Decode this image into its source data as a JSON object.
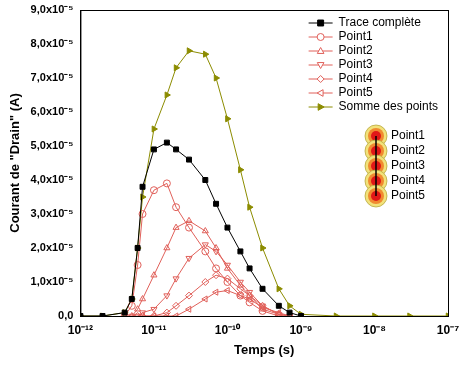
{
  "chart_data": {
    "type": "line",
    "x_label": "Temps (s)",
    "y_label": "Courant de \"Drain\" (A)",
    "log": "x",
    "grid": false,
    "legend": "top-right",
    "xlim": [
      1e-12,
      1e-07
    ],
    "xticks": [
      {
        "value": 1e-12,
        "label": "10⁻¹²"
      },
      {
        "value": 1e-11,
        "label": "10⁻¹¹"
      },
      {
        "value": 1e-10,
        "label": "10⁻¹⁰"
      },
      {
        "value": 1e-09,
        "label": "10⁻⁹"
      },
      {
        "value": 1e-08,
        "label": "10⁻⁸"
      },
      {
        "value": 1e-07,
        "label": "10⁻⁷"
      }
    ],
    "ylim": [
      0,
      9e-05
    ],
    "yticks": [
      {
        "value": 0,
        "label": "0,0"
      },
      {
        "value": 1e-05,
        "label": "1,0x10⁻⁵"
      },
      {
        "value": 2e-05,
        "label": "2,0x10⁻⁵"
      },
      {
        "value": 3e-05,
        "label": "3,0x10⁻⁵"
      },
      {
        "value": 4e-05,
        "label": "4,0x10⁻⁵"
      },
      {
        "value": 5e-05,
        "label": "5,0x10⁻⁵"
      },
      {
        "value": 6e-05,
        "label": "6,0x10⁻⁵"
      },
      {
        "value": 7e-05,
        "label": "7,0x10⁻⁵"
      },
      {
        "value": 8e-05,
        "label": "8,0x10⁻⁵"
      },
      {
        "value": 9e-05,
        "label": "9,0x10⁻⁵"
      }
    ],
    "x": [
      1e-12,
      2e-12,
      4e-12,
      5e-12,
      6e-12,
      7e-12,
      1e-11,
      1.5e-11,
      2e-11,
      3e-11,
      5e-11,
      7e-11,
      1e-10,
      1.5e-10,
      2e-10,
      3e-10,
      5e-10,
      7e-10,
      1e-09,
      3e-09,
      1e-08,
      3e-08,
      1e-07
    ],
    "series": [
      {
        "name": "Trace complète",
        "color": "#000000",
        "marker": "square",
        "values": [
          0,
          0,
          1e-06,
          5e-06,
          2e-05,
          3.8e-05,
          4.9e-05,
          5.1e-05,
          4.9e-05,
          4.6e-05,
          4e-05,
          3.3e-05,
          2.6e-05,
          1.9e-05,
          1.4e-05,
          8e-06,
          3e-06,
          1e-06,
          0,
          null,
          null,
          null,
          null
        ]
      },
      {
        "name": "Point1",
        "color": "#e0605a",
        "marker": "open-circle",
        "values": [
          null,
          null,
          0,
          3e-06,
          1.5e-05,
          3e-05,
          3.7e-05,
          3.9e-05,
          3.2e-05,
          2.6e-05,
          1.9e-05,
          1.4e-05,
          1e-05,
          6e-06,
          4e-06,
          1.5e-06,
          0,
          null,
          null,
          null,
          null,
          null,
          null
        ]
      },
      {
        "name": "Point2",
        "color": "#e0605a",
        "marker": "open-triangle-up",
        "values": [
          null,
          null,
          0,
          0,
          2e-06,
          5e-06,
          1.2e-05,
          2e-05,
          2.6e-05,
          2.8e-05,
          2.5e-05,
          2e-05,
          1.4e-05,
          9e-06,
          6e-06,
          2e-06,
          5e-07,
          0,
          null,
          null,
          null,
          null,
          null
        ]
      },
      {
        "name": "Point3",
        "color": "#e0605a",
        "marker": "open-triangle-down",
        "values": [
          null,
          null,
          null,
          0,
          0,
          1e-06,
          2e-06,
          6e-06,
          1.1e-05,
          1.7e-05,
          2.1e-05,
          1.9e-05,
          1.5e-05,
          1e-05,
          7e-06,
          3e-06,
          5e-07,
          0,
          null,
          null,
          null,
          null,
          null
        ]
      },
      {
        "name": "Point4",
        "color": "#e0605a",
        "marker": "open-diamond",
        "values": [
          null,
          null,
          null,
          null,
          0,
          0,
          0,
          1e-06,
          3e-06,
          6e-06,
          1e-05,
          1.2e-05,
          1.1e-05,
          8e-06,
          6e-06,
          3e-06,
          5e-07,
          0,
          null,
          null,
          null,
          null,
          null
        ]
      },
      {
        "name": "Point5",
        "color": "#e0605a",
        "marker": "open-triangle-left",
        "values": [
          null,
          null,
          null,
          null,
          null,
          0,
          0,
          0,
          0,
          2e-06,
          5e-06,
          7e-06,
          7.5e-06,
          6e-06,
          5e-06,
          2.5e-06,
          1e-06,
          0,
          null,
          null,
          null,
          null,
          null
        ]
      },
      {
        "name": "Somme des points",
        "color": "#8c8c00",
        "marker": "triangle-right",
        "values": [
          0,
          0,
          1e-06,
          5e-06,
          2e-05,
          3.5e-05,
          5.5e-05,
          6.5e-05,
          7.3e-05,
          7.8e-05,
          7.7e-05,
          7e-05,
          5.8e-05,
          4.3e-05,
          3.2e-05,
          2e-05,
          8e-06,
          3e-06,
          5e-07,
          0,
          0,
          0,
          0
        ]
      }
    ],
    "annotations": [
      "Point1",
      "Point2",
      "Point3",
      "Point4",
      "Point5"
    ]
  }
}
